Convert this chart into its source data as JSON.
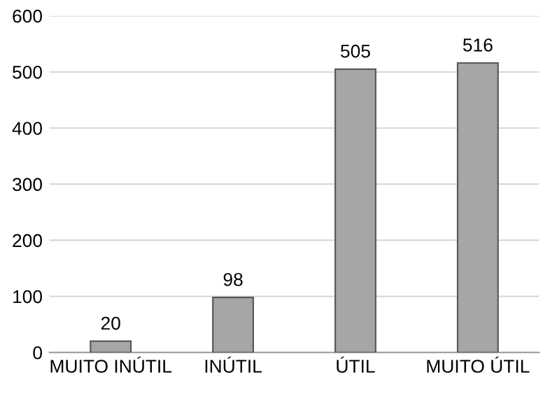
{
  "chart_data": {
    "type": "bar",
    "categories": [
      "MUITO INÚTIL",
      "INÚTIL",
      "ÚTIL",
      "MUITO ÚTIL"
    ],
    "values": [
      20,
      98,
      505,
      516
    ],
    "color": "#a6a6a6",
    "ylim": [
      0,
      600
    ],
    "yticks": [
      0,
      100,
      200,
      300,
      400,
      500,
      600
    ],
    "grid": "y",
    "data_labels": true
  }
}
